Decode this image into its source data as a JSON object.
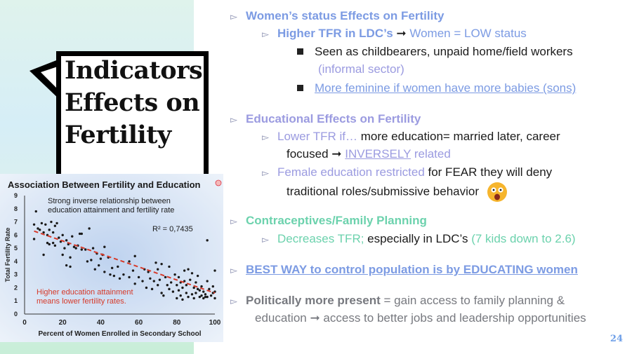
{
  "slide": {
    "title_lines": [
      "Indicators",
      "Effects on",
      "Fertility"
    ],
    "page_number": "24"
  },
  "bullets": {
    "s1": {
      "head": "Women’s status Effects on Fertility",
      "sub1_a": "Higher TFR  in LDC’s ",
      "sub1_arrow": "➞",
      "sub1_b": " Women = LOW status",
      "sub1_i1_a": "Seen as childbearers, unpaid home/field workers",
      "sub1_i1_b": "(informal sector)",
      "sub1_i2": "More feminine if women have more babies (sons)"
    },
    "s2": {
      "head": "Educational Effects on Fertility",
      "sub1_a": "Lower TFR if… ",
      "sub1_b": "more education= married later, career",
      "sub1_c": "focused ",
      "sub1_arrow": "➞",
      "sub1_d": "INVERSELY",
      "sub1_e": " related",
      "sub2_a": "Female education restricted ",
      "sub2_b": "for FEAR they will deny",
      "sub2_c": "traditional roles/submissive behavior"
    },
    "s3": {
      "head": "Contraceptives/Family Planning",
      "sub1_a": "Decreases TFR; ",
      "sub1_b": "especially in LDC’s ",
      "sub1_c": "(7 kids down to 2.6)"
    },
    "s4": {
      "head": "BEST WAY to control population is by EDUCATING women"
    },
    "s5": {
      "head_a": "Politically more present",
      "head_b": " = gain access to family planning &",
      "line2_a": "education ",
      "line2_arrow": "➞",
      "line2_b": " access to better jobs and leadership opportunities"
    }
  },
  "chart_data": {
    "type": "scatter",
    "title": "Association Between Fertility and Education",
    "xlabel": "Percent of  Women Enrolled in Secondary School",
    "ylabel": "Total Fertility Rate",
    "xlim": [
      0,
      100
    ],
    "ylim": [
      0,
      9
    ],
    "xticks": [
      "0",
      "20",
      "40",
      "60",
      "80",
      "100"
    ],
    "yticks": [
      "0",
      "1",
      "2",
      "3",
      "4",
      "5",
      "6",
      "7",
      "8",
      "9"
    ],
    "annotation_top": [
      "Strong inverse relationship between",
      "education attainment and fertility rate"
    ],
    "r_squared": "R² = 0,7435",
    "annotation_bottom": [
      "Higher education attainment",
      "means lower fertility rates."
    ],
    "trendline": {
      "x": [
        5,
        100
      ],
      "y": [
        6.3,
        1.6
      ]
    },
    "points": [
      [
        5,
        6.8
      ],
      [
        5,
        5.7
      ],
      [
        6,
        7.8
      ],
      [
        7,
        6.5
      ],
      [
        8,
        6.4
      ],
      [
        9,
        6.9
      ],
      [
        10,
        6.2
      ],
      [
        10,
        4.5
      ],
      [
        11,
        6.8
      ],
      [
        12,
        6.0
      ],
      [
        12,
        5.4
      ],
      [
        13,
        6.4
      ],
      [
        13,
        5.3
      ],
      [
        14,
        7.0
      ],
      [
        15,
        6.2
      ],
      [
        15,
        5.4
      ],
      [
        16,
        6.7
      ],
      [
        16,
        5.2
      ],
      [
        17,
        6.9
      ],
      [
        18,
        5.8
      ],
      [
        19,
        5.5
      ],
      [
        20,
        4.5
      ],
      [
        20,
        6.0
      ],
      [
        21,
        5.0
      ],
      [
        22,
        5.6
      ],
      [
        22,
        3.7
      ],
      [
        23,
        5.3
      ],
      [
        24,
        4.3
      ],
      [
        24,
        3.6
      ],
      [
        25,
        5.9
      ],
      [
        26,
        5.1
      ],
      [
        27,
        5.0
      ],
      [
        28,
        5.2
      ],
      [
        29,
        6.1
      ],
      [
        30,
        4.9
      ],
      [
        30,
        6.1
      ],
      [
        32,
        4.9
      ],
      [
        33,
        4.0
      ],
      [
        34,
        6.5
      ],
      [
        35,
        4.1
      ],
      [
        36,
        5.0
      ],
      [
        37,
        3.4
      ],
      [
        38,
        4.6
      ],
      [
        39,
        3.7
      ],
      [
        40,
        4.2
      ],
      [
        41,
        4.5
      ],
      [
        42,
        3.2
      ],
      [
        42,
        5.1
      ],
      [
        44,
        4.3
      ],
      [
        45,
        3.0
      ],
      [
        46,
        3.5
      ],
      [
        47,
        2.9
      ],
      [
        49,
        3.6
      ],
      [
        50,
        2.7
      ],
      [
        52,
        3.0
      ],
      [
        55,
        2.8
      ],
      [
        55,
        4.0
      ],
      [
        57,
        3.3
      ],
      [
        58,
        2.3
      ],
      [
        58,
        4.4
      ],
      [
        60,
        2.8
      ],
      [
        62,
        2.5
      ],
      [
        63,
        3.4
      ],
      [
        64,
        2.0
      ],
      [
        65,
        3.2
      ],
      [
        66,
        2.7
      ],
      [
        67,
        1.9
      ],
      [
        68,
        2.5
      ],
      [
        69,
        3.9
      ],
      [
        70,
        3.4
      ],
      [
        70,
        2.2
      ],
      [
        71,
        2.6
      ],
      [
        72,
        1.6
      ],
      [
        72,
        3.8
      ],
      [
        73,
        1.4
      ],
      [
        74,
        2.8
      ],
      [
        75,
        2.2
      ],
      [
        76,
        1.9
      ],
      [
        76,
        3.6
      ],
      [
        77,
        2.4
      ],
      [
        78,
        1.7
      ],
      [
        79,
        3.0
      ],
      [
        80,
        2.2
      ],
      [
        80,
        1.2
      ],
      [
        81,
        2.8
      ],
      [
        81,
        1.8
      ],
      [
        82,
        2.4
      ],
      [
        82,
        1.4
      ],
      [
        83,
        2.0
      ],
      [
        83,
        1.1
      ],
      [
        84,
        3.3
      ],
      [
        84,
        2.5
      ],
      [
        85,
        1.6
      ],
      [
        85,
        2.2
      ],
      [
        86,
        3.4
      ],
      [
        86,
        1.3
      ],
      [
        87,
        2.6
      ],
      [
        88,
        1.5
      ],
      [
        88,
        3.1
      ],
      [
        89,
        2.0
      ],
      [
        89,
        1.2
      ],
      [
        90,
        2.4
      ],
      [
        90,
        1.6
      ],
      [
        91,
        1.9
      ],
      [
        91,
        2.9
      ],
      [
        92,
        1.3
      ],
      [
        92,
        1.8
      ],
      [
        93,
        2.1
      ],
      [
        93,
        1.4
      ],
      [
        94,
        1.7
      ],
      [
        94,
        1.2
      ],
      [
        95,
        1.5
      ],
      [
        95,
        1.3
      ],
      [
        96,
        2.5
      ],
      [
        96,
        1.3
      ],
      [
        96,
        5.6
      ],
      [
        97,
        1.9
      ],
      [
        98,
        1.4
      ],
      [
        99,
        1.6
      ],
      [
        99,
        2.1
      ],
      [
        100,
        1.2
      ],
      [
        100,
        3.3
      ],
      [
        100,
        1.7
      ]
    ]
  },
  "colors": {
    "blue": "#7c9be3",
    "lavender": "#9b9be0",
    "green": "#6cd2ad",
    "trend": "#d63a2a",
    "dots": "#1a1a1a"
  },
  "icons": {
    "chart_emoji": "smiley-icon",
    "shocked_emoji": "shocked-face-icon"
  }
}
